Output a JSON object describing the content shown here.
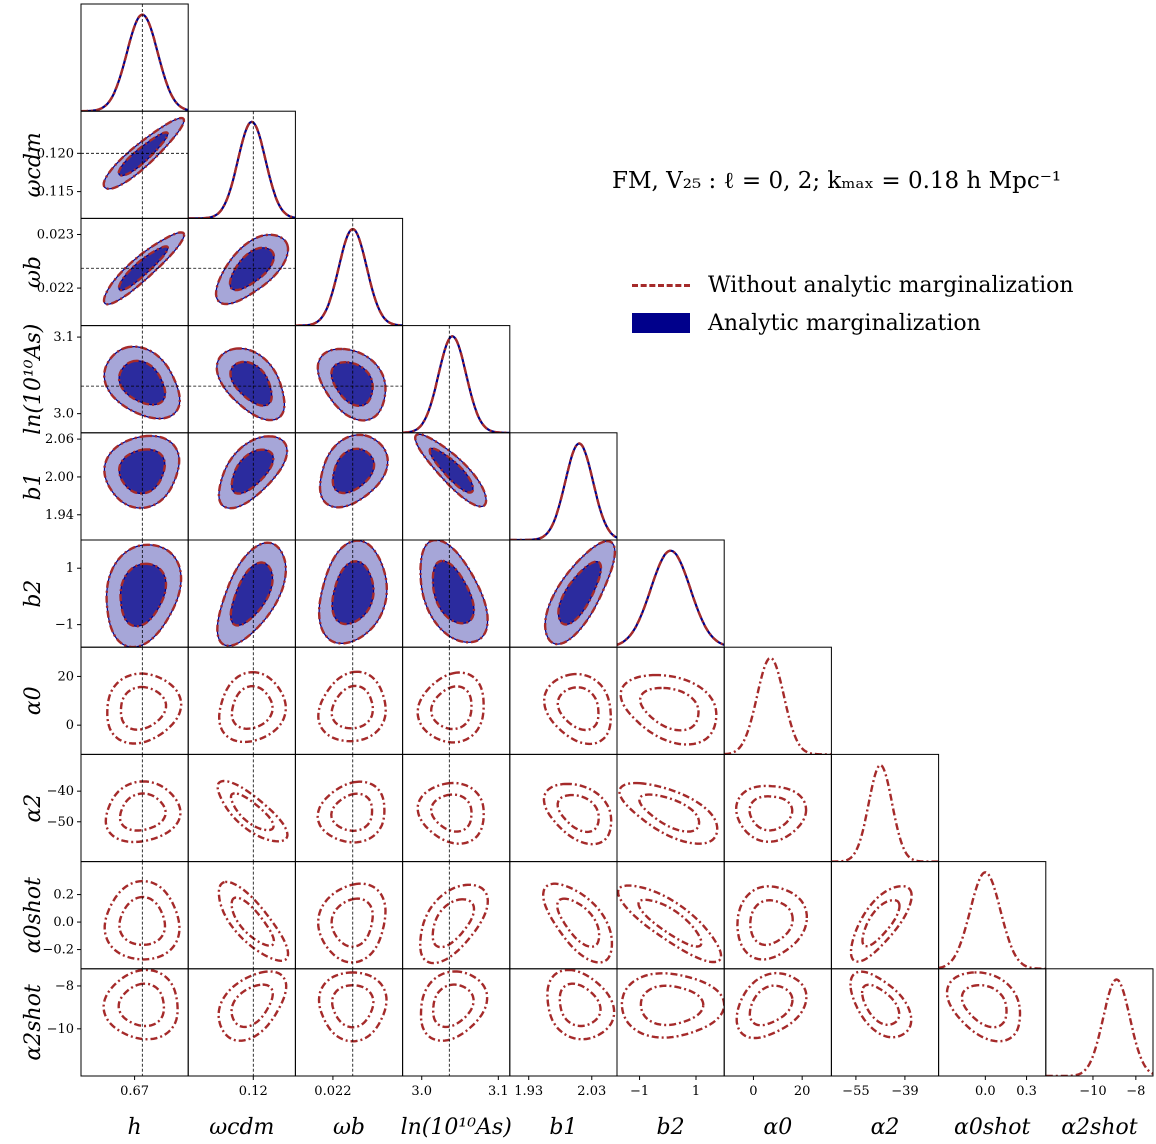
{
  "annotation": "FM, V₂₅ : ℓ = 0, 2; kₘₐₓ = 0.18 h Mpc⁻¹",
  "legend": {
    "without_label": "Without analytic marginalization",
    "with_label": "Analytic marginalization"
  },
  "colors": {
    "without": "#a52a2a",
    "filled_inner": "#2b2b9e",
    "filled_outer": "#a6a6d8",
    "outline": "#00008b"
  },
  "chart_data": {
    "type": "corner",
    "parameters": [
      {
        "label": "h",
        "range": [
          0.645,
          0.695
        ],
        "ticks": [
          0.67
        ],
        "tick_labels": [
          "0.67"
        ],
        "fiducial": 0.6736,
        "mean": 0.6736,
        "sigma": 0.0072,
        "analytic": true
      },
      {
        "label": "ωcdm",
        "range": [
          0.1115,
          0.1255
        ],
        "ticks": [
          0.115,
          0.12
        ],
        "tick_labels": [
          "0.115",
          "0.120"
        ],
        "bottom_tick_labels": [
          "",
          "0.12"
        ],
        "fiducial": 0.12,
        "mean": 0.1198,
        "sigma": 0.0018,
        "analytic": true
      },
      {
        "label": "ωb",
        "range": [
          0.0213,
          0.0233
        ],
        "ticks": [
          0.022,
          0.023
        ],
        "tick_labels": [
          "0.022",
          "0.023"
        ],
        "bottom_tick_labels": [
          "0.022",
          ""
        ],
        "fiducial": 0.02237,
        "mean": 0.02237,
        "sigma": 0.00026,
        "analytic": true
      },
      {
        "label": "ln(10¹⁰As)",
        "range": [
          2.975,
          3.115
        ],
        "ticks": [
          3.0,
          3.1
        ],
        "tick_labels": [
          "3.0",
          "3.1"
        ],
        "bottom_tick_labels": [
          "3.0",
          "3.1"
        ],
        "fiducial": 3.036,
        "mean": 3.04,
        "sigma": 0.018,
        "analytic": true
      },
      {
        "label": "b1",
        "range": [
          1.9,
          2.07
        ],
        "ticks": [
          1.94,
          2.0,
          2.06
        ],
        "tick_labels": [
          "1.94",
          "2.00",
          "2.06"
        ],
        "bottom_tick_labels": [
          "1.93",
          "2.03"
        ],
        "bottom_ticks": [
          1.93,
          2.03
        ],
        "fiducial": null,
        "mean": 2.01,
        "sigma": 0.022,
        "analytic": true
      },
      {
        "label": "b2",
        "range": [
          -1.8,
          2.0
        ],
        "ticks": [
          -1,
          1
        ],
        "tick_labels": [
          "−1",
          "1"
        ],
        "bottom_tick_labels": [
          "−1",
          "1"
        ],
        "fiducial": null,
        "mean": 0.1,
        "sigma": 0.7,
        "analytic": true
      },
      {
        "label": "α0",
        "range": [
          -12,
          32
        ],
        "ticks": [
          0,
          20
        ],
        "tick_labels": [
          "0",
          "20"
        ],
        "bottom_tick_labels": [
          "0",
          "20"
        ],
        "fiducial": null,
        "mean": 7,
        "sigma": 5.5,
        "analytic": false
      },
      {
        "label": "α2",
        "range": [
          -63,
          -28
        ],
        "ticks": [
          -50,
          -40
        ],
        "tick_labels": [
          "−50",
          "−40"
        ],
        "bottom_tick_labels": [
          "−55",
          "−39"
        ],
        "bottom_ticks": [
          -55,
          -39
        ],
        "fiducial": null,
        "mean": -47,
        "sigma": 3.8,
        "analytic": false
      },
      {
        "label": "α0shot",
        "range": [
          -0.34,
          0.44
        ],
        "ticks": [
          -0.2,
          0.0,
          0.2
        ],
        "tick_labels": [
          "−0.2",
          "0.0",
          "0.2"
        ],
        "bottom_tick_labels": [
          "0.0",
          "0.3"
        ],
        "bottom_ticks": [
          0.0,
          0.3
        ],
        "fiducial": null,
        "mean": 0.0,
        "sigma": 0.11,
        "analytic": false
      },
      {
        "label": "α2shot",
        "range": [
          -12.2,
          -7.2
        ],
        "ticks": [
          -10,
          -8
        ],
        "tick_labels": [
          "−10",
          "−8"
        ],
        "bottom_tick_labels": [
          "−10",
          "−8"
        ],
        "fiducial": null,
        "mean": -8.9,
        "sigma": 0.62,
        "analytic": false
      }
    ],
    "correlations": [
      [
        1,
        0.9,
        0.9,
        -0.3,
        0.1,
        0.2,
        0.1,
        0.1,
        0.0,
        0.0
      ],
      [
        0.9,
        1,
        0.6,
        -0.45,
        0.55,
        0.55,
        0.1,
        -0.75,
        -0.75,
        0.4
      ],
      [
        0.9,
        0.6,
        1,
        -0.3,
        0.3,
        0.2,
        0.1,
        0.1,
        0.1,
        0.0
      ],
      [
        -0.3,
        -0.45,
        -0.3,
        1,
        -0.85,
        -0.45,
        0.1,
        -0.1,
        0.5,
        0.2
      ],
      [
        0.1,
        0.55,
        0.3,
        -0.85,
        1,
        0.7,
        -0.2,
        -0.35,
        -0.6,
        -0.2
      ],
      [
        0.2,
        0.55,
        0.2,
        -0.45,
        0.7,
        1,
        -0.3,
        -0.6,
        -0.8,
        0.0
      ],
      [
        0.1,
        0.1,
        0.1,
        0.1,
        -0.2,
        -0.3,
        1,
        0.0,
        0.1,
        0.3
      ],
      [
        0.1,
        -0.75,
        0.1,
        -0.1,
        -0.35,
        -0.6,
        0.0,
        1,
        0.7,
        -0.5
      ],
      [
        0.0,
        -0.75,
        0.1,
        0.5,
        -0.6,
        -0.8,
        0.1,
        0.7,
        1,
        -0.3
      ],
      [
        0.0,
        0.4,
        0.0,
        0.2,
        -0.2,
        0.0,
        0.3,
        -0.5,
        -0.3,
        1
      ]
    ],
    "contour_levels": [
      "1σ",
      "2σ"
    ],
    "series": [
      {
        "name": "Without analytic marginalization"
      },
      {
        "name": "Analytic marginalization"
      }
    ]
  }
}
